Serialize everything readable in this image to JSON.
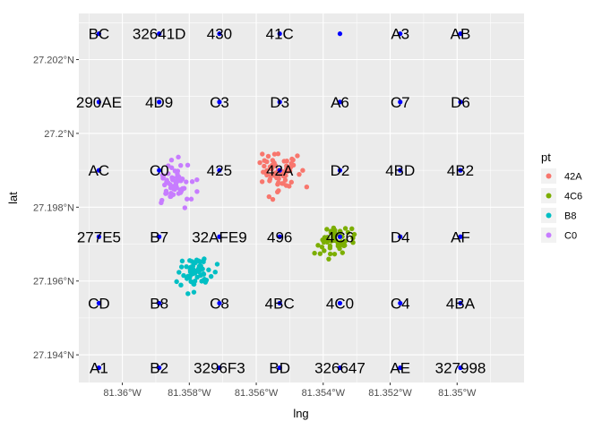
{
  "chart_data": {
    "type": "scatter",
    "xlabel": "lng",
    "ylabel": "lat",
    "xlim": [
      -81.3613,
      -81.348
    ],
    "ylim": [
      27.19325,
      27.20325
    ],
    "x_ticks": [
      {
        "value": -81.36,
        "label": "81.36°W"
      },
      {
        "value": -81.358,
        "label": "81.358°W"
      },
      {
        "value": -81.356,
        "label": "81.356°W"
      },
      {
        "value": -81.354,
        "label": "81.354°W"
      },
      {
        "value": -81.352,
        "label": "81.352°W"
      },
      {
        "value": -81.35,
        "label": "81.35°W"
      }
    ],
    "y_ticks": [
      {
        "value": 27.194,
        "label": "27.194°N"
      },
      {
        "value": 27.196,
        "label": "27.196°N"
      },
      {
        "value": 27.198,
        "label": "27.198°N"
      },
      {
        "value": 27.2,
        "label": "27.2°N"
      },
      {
        "value": 27.202,
        "label": "27.202°N"
      }
    ],
    "grid": true,
    "legend_placement": "right",
    "legend_title": "pt",
    "series": [
      {
        "name": "42A",
        "color": "#F8766D",
        "center": [
          -81.35535,
          27.19895
        ],
        "spread": [
          0.0005,
          0.00048
        ],
        "n": 70
      },
      {
        "name": "4C6",
        "color": "#7CAE00",
        "center": [
          -81.3536,
          27.19705
        ],
        "spread": [
          0.00048,
          0.0004
        ],
        "n": 55
      },
      {
        "name": "B8",
        "color": "#00BFC4",
        "center": [
          -81.35785,
          27.19625
        ],
        "spread": [
          0.00048,
          0.00038
        ],
        "n": 55
      },
      {
        "name": "C0",
        "color": "#C77CFF",
        "center": [
          -81.35845,
          27.19865
        ],
        "spread": [
          0.0004,
          0.00055
        ],
        "n": 65
      }
    ],
    "grid_cell_points": {
      "color": "#0000FF",
      "lngs": [
        -81.3607,
        -81.3589,
        -81.3571,
        -81.3553,
        -81.3535,
        -81.3517,
        -81.3499
      ],
      "lats": [
        27.19365,
        27.1954,
        27.1972,
        27.199,
        27.20085,
        27.2027
      ],
      "labels": [
        [
          "BC",
          "32641D",
          "430",
          "41C",
          "",
          "A3",
          "AB"
        ],
        [
          "290AE",
          "4D9",
          "C3",
          "D3",
          "A6",
          "C7",
          "D6"
        ],
        [
          "AC",
          "C0",
          "425",
          "42A",
          "D2",
          "4BD",
          "4B2"
        ],
        [
          "277E5",
          "B7",
          "32AFE9",
          "496",
          "4C6",
          "D4",
          "AF"
        ],
        [
          "CD",
          "B8",
          "C8",
          "4BC",
          "4C0",
          "C4",
          "4BA"
        ],
        [
          "A1",
          "B2",
          "3296F3",
          "BD",
          "326647",
          "AE",
          "327998"
        ]
      ]
    }
  }
}
